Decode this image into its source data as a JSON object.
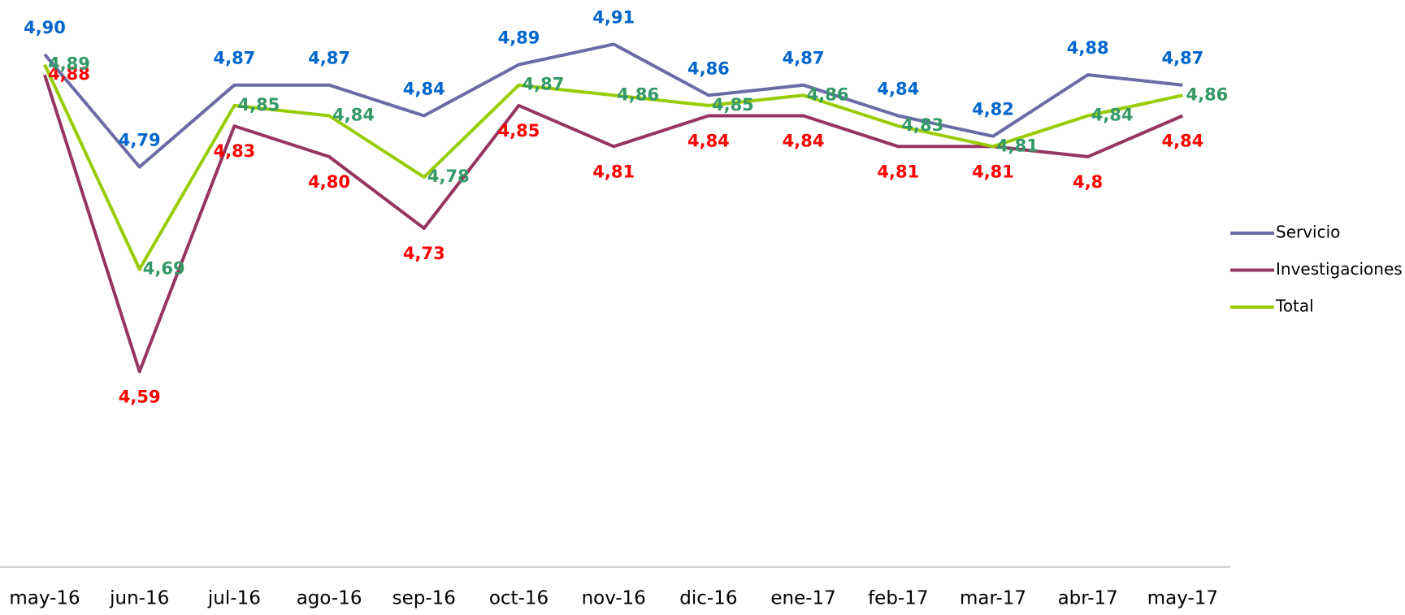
{
  "chart_data": {
    "type": "line",
    "categories": [
      "may-16",
      "jun-16",
      "jul-16",
      "ago-16",
      "sep-16",
      "oct-16",
      "nov-16",
      "dic-16",
      "ene-17",
      "feb-17",
      "mar-17",
      "abr-17",
      "may-17"
    ],
    "series": [
      {
        "name": "Servicio",
        "color": "#6b6ba5",
        "label_color": "#0066cc",
        "values": [
          4.9,
          4.79,
          4.87,
          4.87,
          4.84,
          4.89,
          4.91,
          4.86,
          4.87,
          4.84,
          4.82,
          4.88,
          4.87
        ],
        "value_labels": [
          "4,90",
          "4,79",
          "4,87",
          "4,87",
          "4,84",
          "4,89",
          "4,91",
          "4,86",
          "4,87",
          "4,84",
          "4,82",
          "4,88",
          "4,87"
        ]
      },
      {
        "name": "Investigaciones",
        "color": "#953560",
        "label_color": "#ff0000",
        "values": [
          4.88,
          4.59,
          4.83,
          4.8,
          4.73,
          4.85,
          4.81,
          4.84,
          4.84,
          4.81,
          4.81,
          4.8,
          4.84
        ],
        "value_labels": [
          "4,88",
          "4,59",
          "4,83",
          "4,80",
          "4,73",
          "4,85",
          "4,81",
          "4,84",
          "4,84",
          "4,81",
          "4,81",
          "4,8",
          "4,84"
        ]
      },
      {
        "name": "Total",
        "color": "#99cc00",
        "label_color": "#339966",
        "values": [
          4.89,
          4.69,
          4.85,
          4.84,
          4.78,
          4.87,
          4.86,
          4.85,
          4.86,
          4.83,
          4.81,
          4.84,
          4.86
        ],
        "value_labels": [
          "4,89",
          "4,69",
          "4,85",
          "4,84",
          "4,78",
          "4,87",
          "4,86",
          "4,85",
          "4,86",
          "4,83",
          "4,81",
          "4,84",
          "4,86"
        ]
      }
    ],
    "ylim": [
      4.4,
      4.95
    ],
    "legend": "right"
  }
}
